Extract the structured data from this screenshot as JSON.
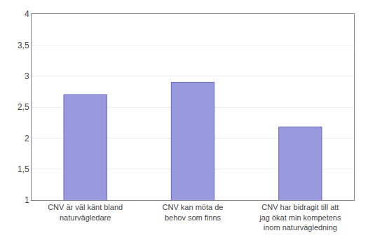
{
  "chart_data": {
    "type": "bar",
    "categories": [
      "CNV är väl känt bland\nnaturvägledare",
      "CNV kan möta de\nbehov som finns",
      "CNV har bidragit till att\njag ökat min kompetens\ninom naturvägledning"
    ],
    "values": [
      2.7,
      2.9,
      2.18
    ],
    "color": "#9999dd",
    "ylim": [
      1,
      4
    ],
    "yticks": [
      1,
      {
        "value": 1.5,
        "label": "1,5"
      },
      2,
      {
        "value": 2.5,
        "label": "2,5"
      },
      3,
      {
        "value": 3.5,
        "label": "3,5"
      },
      4
    ],
    "grid": true
  }
}
